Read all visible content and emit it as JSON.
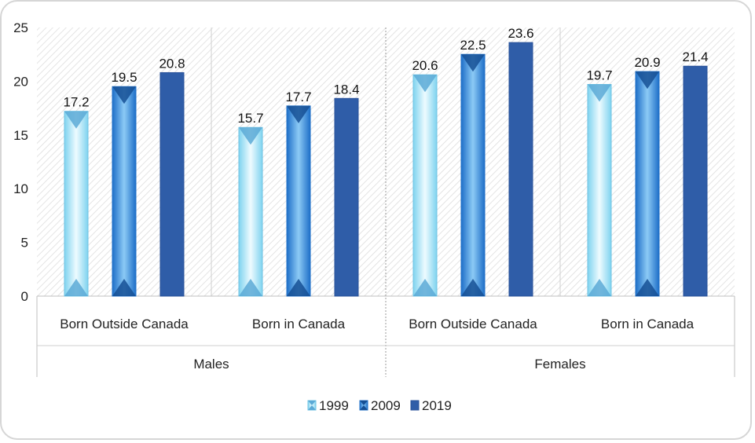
{
  "chart_data": {
    "type": "bar",
    "groups": [
      {
        "label": "Males",
        "categories": [
          "Born Outside Canada",
          "Born in Canada"
        ]
      },
      {
        "label": "Females",
        "categories": [
          "Born Outside Canada",
          "Born in Canada"
        ]
      }
    ],
    "categories": [
      "Born Outside Canada",
      "Born in Canada",
      "Born Outside Canada",
      "Born in Canada"
    ],
    "series": [
      {
        "name": "1999",
        "values": [
          17.2,
          15.7,
          20.6,
          19.7
        ],
        "color": "#bfe9f7"
      },
      {
        "name": "2009",
        "values": [
          19.5,
          17.7,
          22.5,
          20.9
        ],
        "color": "#2f86d6"
      },
      {
        "name": "2019",
        "values": [
          20.8,
          18.4,
          23.6,
          21.4
        ],
        "color": "#2f5da8"
      }
    ],
    "data_labels": [
      [
        "17.2",
        "15.7",
        "20.6",
        "19.7"
      ],
      [
        "19.5",
        "17.7",
        "22.5",
        "20.9"
      ],
      [
        "20.8",
        "18.4",
        "23.6",
        "21.4"
      ]
    ],
    "y_ticks": [
      "0",
      "5",
      "10",
      "15",
      "20",
      "25"
    ],
    "ylim": [
      0,
      25
    ],
    "title": "",
    "xlabel": "",
    "ylabel": "",
    "legend_position": "bottom",
    "grid": false
  }
}
